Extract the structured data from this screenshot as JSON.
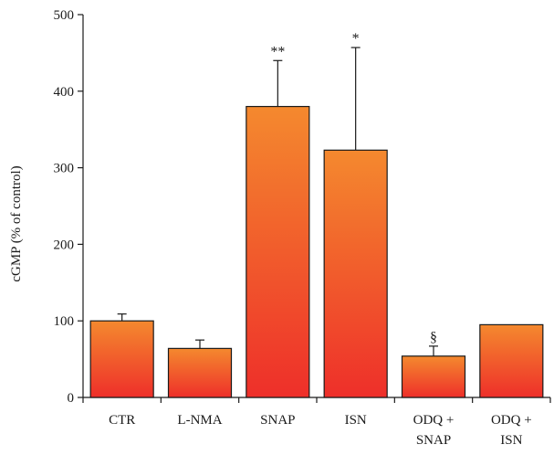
{
  "chart_data": {
    "type": "bar",
    "categories": [
      [
        "CTR"
      ],
      [
        "L-NMA"
      ],
      [
        "SNAP"
      ],
      [
        "ISN"
      ],
      [
        "ODQ +",
        "SNAP"
      ],
      [
        "ODQ +",
        "ISN"
      ]
    ],
    "values": [
      100,
      64,
      380,
      323,
      54,
      95
    ],
    "error_bars": [
      9,
      11,
      60,
      134,
      13,
      0
    ],
    "annotations": [
      "",
      "",
      "**",
      "*",
      "§",
      ""
    ],
    "ylabel": "cGMP (% of control)",
    "xlabel": "",
    "ylim": [
      0,
      500
    ],
    "yticks": [
      0,
      100,
      200,
      300,
      400,
      500
    ],
    "grid": false,
    "legend": "none",
    "colors": {
      "bar_top": "#f4892e",
      "bar_bottom": "#ee2f2a",
      "stroke": "#1a1a1a"
    }
  }
}
